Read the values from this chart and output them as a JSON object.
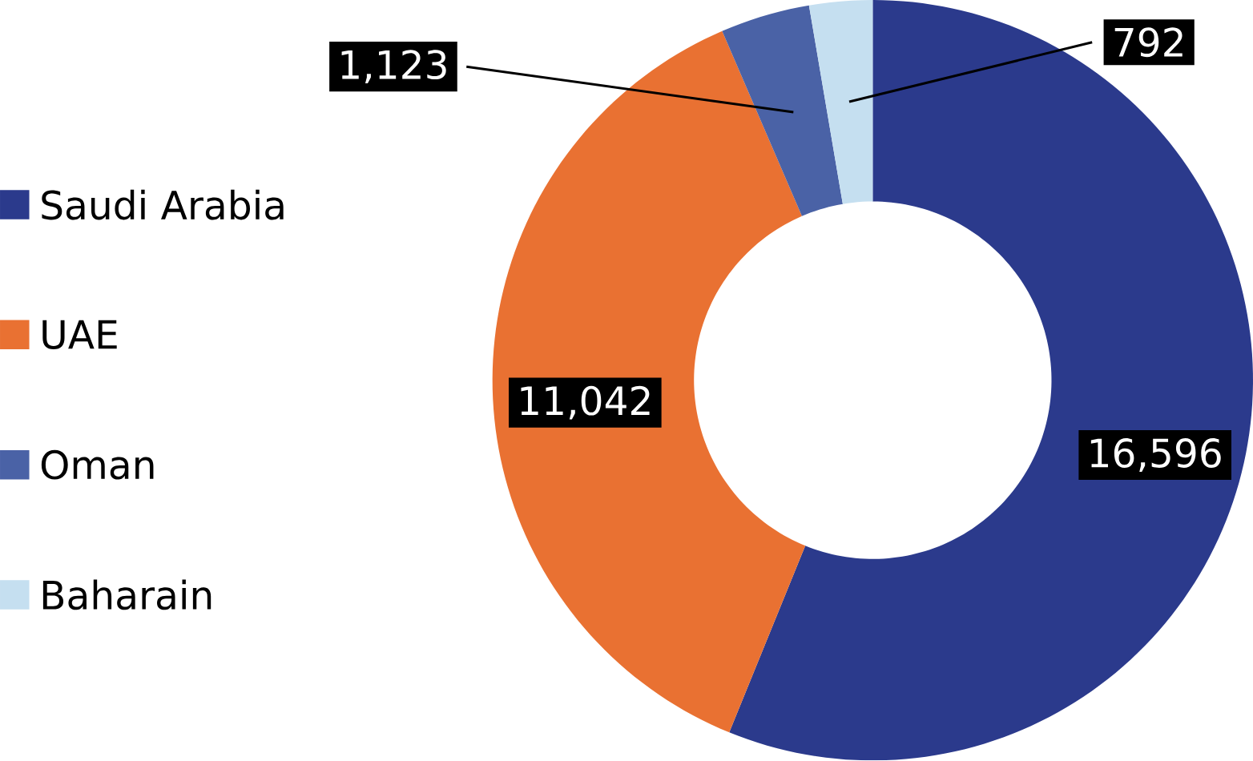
{
  "chart_data": {
    "type": "donut",
    "categories": [
      "Saudi Arabia",
      "UAE",
      "Oman",
      "Baharain"
    ],
    "values": [
      16596,
      11042,
      1123,
      792
    ],
    "value_labels": [
      "16,596",
      "11,042",
      "1,123",
      "792"
    ],
    "colors": [
      "#2b3a8c",
      "#e97132",
      "#4a62a6",
      "#c5dff0"
    ],
    "legend": "left"
  }
}
